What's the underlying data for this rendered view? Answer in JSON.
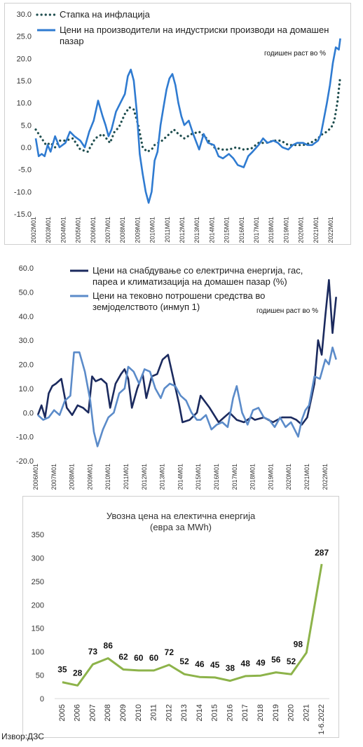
{
  "source_note": "Извор:ДЗС",
  "chart_data": [
    {
      "type": "line",
      "annotation": "годишен раст во %",
      "ylim": [
        -15,
        30
      ],
      "yticks": [
        "30.0",
        "25.0",
        "20.0",
        "15.0",
        "10.0",
        "5.0",
        "0.0",
        "-5.0",
        "-10.0",
        "-15.0"
      ],
      "xticks": [
        "2002M01",
        "2003M01",
        "2004M01",
        "2005M01",
        "2006M01",
        "2007M01",
        "2008M01",
        "2009M01",
        "2010M01",
        "2011M01",
        "2012M01",
        "2013M01",
        "2014M01",
        "2015M01",
        "2016M01",
        "2017M01",
        "2018M01",
        "2019M01",
        "2020M01",
        "2021M01",
        "2022M01"
      ],
      "x_start": 2002.0,
      "series": [
        {
          "name": "Стапка на инфлација",
          "color": "#1f4e4f",
          "style": "dotted",
          "t": [
            2002.0,
            2002.3,
            2002.7,
            2003.0,
            2003.3,
            2003.6,
            2004.0,
            2004.5,
            2005.0,
            2005.5,
            2006.0,
            2006.5,
            2007.0,
            2007.3,
            2007.6,
            2008.0,
            2008.3,
            2008.6,
            2008.9,
            2009.2,
            2009.5,
            2009.8,
            2010.0,
            2010.5,
            2011.0,
            2011.3,
            2011.6,
            2012.0,
            2012.5,
            2013.0,
            2013.5,
            2014.0,
            2014.5,
            2015.0,
            2015.5,
            2016.0,
            2016.5,
            2017.0,
            2017.5,
            2018.0,
            2018.5,
            2019.0,
            2019.5,
            2020.0,
            2020.5,
            2021.0,
            2021.3,
            2021.6,
            2021.9,
            2022.1,
            2022.3,
            2022.5
          ],
          "y": [
            4.0,
            2.5,
            0.5,
            1.0,
            0.0,
            1.5,
            1.5,
            2.0,
            -0.5,
            -1.0,
            2.0,
            3.0,
            1.0,
            3.5,
            4.5,
            7.5,
            9.0,
            8.5,
            5.0,
            0.0,
            -1.0,
            -0.5,
            0.5,
            1.5,
            3.0,
            4.0,
            3.0,
            2.0,
            3.0,
            3.5,
            2.0,
            0.0,
            -0.5,
            -0.5,
            0.0,
            -0.5,
            -0.3,
            1.0,
            1.0,
            1.5,
            1.5,
            0.5,
            0.5,
            0.5,
            1.0,
            2.0,
            3.0,
            3.5,
            4.5,
            6.0,
            10.0,
            16.0
          ]
        },
        {
          "name": "Цени на производители на индустриски производи на домашен пазар",
          "color": "#2f7bd1",
          "style": "solid",
          "t": [
            2002.0,
            2002.2,
            2002.4,
            2002.6,
            2002.8,
            2003.0,
            2003.3,
            2003.6,
            2004.0,
            2004.3,
            2004.6,
            2005.0,
            2005.3,
            2005.6,
            2005.9,
            2006.2,
            2006.5,
            2006.7,
            2006.9,
            2007.1,
            2007.4,
            2007.7,
            2008.0,
            2008.2,
            2008.4,
            2008.6,
            2008.8,
            2009.0,
            2009.2,
            2009.4,
            2009.6,
            2009.8,
            2010.0,
            2010.2,
            2010.4,
            2010.6,
            2010.8,
            2011.0,
            2011.2,
            2011.4,
            2011.6,
            2011.8,
            2012.0,
            2012.3,
            2012.6,
            2013.0,
            2013.3,
            2013.6,
            2014.0,
            2014.3,
            2014.6,
            2015.0,
            2015.3,
            2015.6,
            2016.0,
            2016.3,
            2016.6,
            2017.0,
            2017.3,
            2017.6,
            2018.0,
            2018.3,
            2018.6,
            2019.0,
            2019.3,
            2019.6,
            2020.0,
            2020.3,
            2020.6,
            2021.0,
            2021.2,
            2021.4,
            2021.6,
            2021.8,
            2022.0,
            2022.2,
            2022.4,
            2022.5
          ],
          "y": [
            2.0,
            -2.0,
            -1.5,
            -2.0,
            0.5,
            -1.0,
            2.5,
            0.0,
            1.0,
            3.5,
            2.5,
            1.5,
            0.0,
            3.5,
            6.0,
            10.5,
            7.0,
            5.0,
            2.5,
            4.0,
            8.0,
            10.0,
            12.0,
            16.0,
            17.5,
            15.0,
            8.0,
            -1.5,
            -6.0,
            -10.0,
            -12.5,
            -10.0,
            -3.0,
            -1.0,
            5.0,
            9.0,
            13.0,
            15.5,
            16.5,
            14.0,
            10.0,
            7.0,
            5.0,
            6.0,
            3.0,
            -0.5,
            3.0,
            1.0,
            0.5,
            -2.0,
            -2.5,
            -1.5,
            -2.5,
            -4.0,
            -4.5,
            -2.0,
            -1.0,
            0.5,
            2.0,
            1.0,
            1.5,
            1.0,
            0.0,
            -0.5,
            0.5,
            1.0,
            1.0,
            0.5,
            0.5,
            1.5,
            3.0,
            6.5,
            10.0,
            14.0,
            19.0,
            22.5,
            22.0,
            24.5
          ]
        }
      ]
    },
    {
      "type": "line",
      "annotation": "годишен раст во %",
      "ylim": [
        -20,
        60
      ],
      "yticks": [
        "60.0",
        "50.0",
        "40.0",
        "30.0",
        "20.0",
        "10.0",
        "0.0",
        "-10.0",
        "-20.0"
      ],
      "xticks": [
        "2006M01",
        "2007M01",
        "2008M01",
        "2009M01",
        "2010M01",
        "2011M01",
        "2012M01",
        "2013M01",
        "2014M01",
        "2015M01",
        "2016M01",
        "2017M01",
        "2018M01",
        "2019M01",
        "2020M01",
        "2021M01",
        "2022M01"
      ],
      "x_start": 2006.0,
      "series": [
        {
          "name": "Цени на снабдување со електрична енергија, гас, пареа и климатизација на домашен пазар (%)",
          "color": "#1b2a5e",
          "style": "solid",
          "t": [
            2006.0,
            2006.2,
            2006.4,
            2006.6,
            2006.8,
            2007.0,
            2007.3,
            2007.6,
            2007.9,
            2008.2,
            2008.5,
            2008.8,
            2009.0,
            2009.2,
            2009.5,
            2009.8,
            2010.0,
            2010.3,
            2010.6,
            2010.8,
            2011.0,
            2011.2,
            2011.5,
            2011.8,
            2012.0,
            2012.3,
            2012.6,
            2012.9,
            2013.2,
            2013.5,
            2013.8,
            2014.0,
            2014.4,
            2014.8,
            2015.0,
            2015.5,
            2016.0,
            2016.3,
            2016.6,
            2017.0,
            2017.4,
            2017.8,
            2018.0,
            2018.5,
            2019.0,
            2019.5,
            2020.0,
            2020.3,
            2020.6,
            2020.9,
            2021.1,
            2021.3,
            2021.5,
            2021.7,
            2021.9,
            2022.1,
            2022.3,
            2022.5
          ],
          "y": [
            -1.0,
            3.0,
            -2.0,
            8.0,
            11.0,
            12.0,
            14.0,
            2.0,
            -1.0,
            3.0,
            2.0,
            0.0,
            15.0,
            13.0,
            14.0,
            12.0,
            2.0,
            12.0,
            16.0,
            18.0,
            14.0,
            2.0,
            10.0,
            16.0,
            6.0,
            15.0,
            16.0,
            22.0,
            24.0,
            14.0,
            4.0,
            -4.0,
            -3.0,
            0.0,
            7.0,
            2.0,
            -4.0,
            -2.0,
            0.0,
            -3.0,
            -4.0,
            -2.0,
            -3.0,
            -2.0,
            -4.0,
            -2.0,
            -2.0,
            -3.0,
            -5.0,
            -2.0,
            5.0,
            12.0,
            30.0,
            24.0,
            40.0,
            55.0,
            33.0,
            48.0
          ]
        },
        {
          "name": "Цени на тековно потрошени средства во земјоделството (инмуп 1)",
          "color": "#5b8bc9",
          "style": "solid",
          "t": [
            2006.0,
            2006.3,
            2006.6,
            2006.9,
            2007.2,
            2007.5,
            2007.8,
            2008.0,
            2008.3,
            2008.6,
            2008.9,
            2009.1,
            2009.3,
            2009.6,
            2009.9,
            2010.2,
            2010.5,
            2010.8,
            2011.0,
            2011.3,
            2011.6,
            2011.9,
            2012.2,
            2012.5,
            2012.8,
            2013.0,
            2013.3,
            2013.6,
            2013.9,
            2014.2,
            2014.5,
            2014.8,
            2015.0,
            2015.3,
            2015.6,
            2015.9,
            2016.2,
            2016.5,
            2016.8,
            2017.0,
            2017.3,
            2017.6,
            2017.9,
            2018.2,
            2018.5,
            2018.8,
            2019.1,
            2019.4,
            2019.7,
            2020.0,
            2020.2,
            2020.4,
            2020.6,
            2020.8,
            2021.0,
            2021.3,
            2021.6,
            2021.9,
            2022.1,
            2022.3,
            2022.5
          ],
          "y": [
            -1.0,
            -3.0,
            -2.0,
            1.0,
            -1.0,
            5.0,
            7.0,
            25.0,
            25.0,
            17.0,
            5.0,
            -8.0,
            -14.0,
            -7.0,
            -2.0,
            0.0,
            8.0,
            10.0,
            19.0,
            17.0,
            12.0,
            18.0,
            17.0,
            10.0,
            6.0,
            10.0,
            12.0,
            11.0,
            7.0,
            5.0,
            0.0,
            -3.0,
            -3.0,
            -1.0,
            -7.0,
            -5.0,
            -4.0,
            -6.0,
            6.0,
            11.0,
            0.0,
            -5.0,
            1.0,
            2.0,
            -2.0,
            -3.0,
            -6.0,
            -2.0,
            -6.0,
            -4.0,
            -7.0,
            -10.0,
            -3.0,
            1.0,
            3.0,
            15.0,
            14.0,
            22.0,
            20.0,
            27.0,
            22.0
          ]
        }
      ]
    },
    {
      "type": "line",
      "title": "Увозна цена на електична енергија",
      "subtitle": "(евра за MWh)",
      "ylim": [
        0,
        350
      ],
      "yticks": [
        "350",
        "300",
        "250",
        "200",
        "150",
        "100",
        "50",
        "0"
      ],
      "categories": [
        "2005",
        "2006",
        "2007",
        "2008",
        "2009",
        "2010",
        "2011",
        "2012",
        "2013",
        "2014",
        "2015",
        "2016",
        "2017",
        "2018",
        "2019",
        "2020",
        "2021",
        "1-6.2022"
      ],
      "series": [
        {
          "color": "#8db34a",
          "values": [
            35,
            28,
            73,
            86,
            62,
            60,
            60,
            72,
            52,
            46,
            45,
            38,
            48,
            49,
            56,
            52,
            98,
            287
          ]
        }
      ]
    }
  ]
}
